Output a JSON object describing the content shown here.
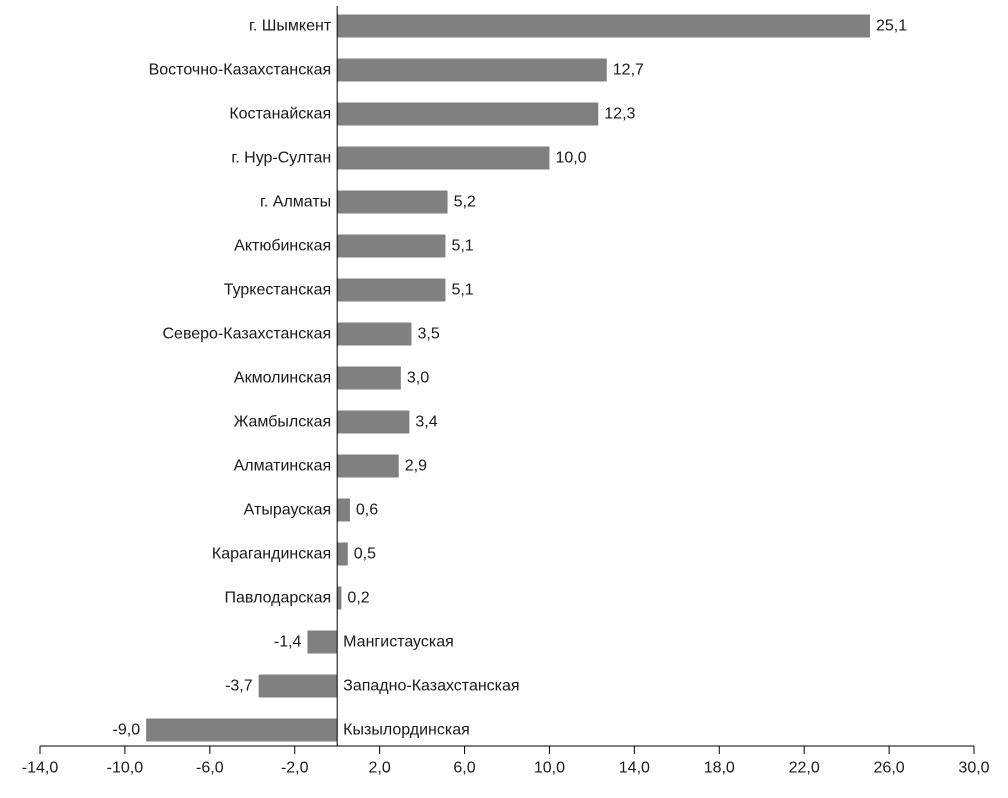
{
  "chart_data": {
    "type": "bar",
    "orientation": "horizontal",
    "categories": [
      "г. Шымкент",
      "Восточно-Казахстанская",
      "Костанайская",
      "г. Нур-Султан",
      "г. Алматы",
      "Актюбинская",
      "Туркестанская",
      "Северо-Казахстанская",
      "Акмолинская",
      "Жамбылская",
      "Алматинская",
      "Атырауская",
      "Карагандинская",
      "Павлодарская",
      "Мангистауская",
      "Западно-Казахстанская",
      "Кызылординская"
    ],
    "values": [
      25.1,
      12.7,
      12.3,
      10.0,
      5.2,
      5.1,
      5.1,
      3.5,
      3.0,
      3.4,
      2.9,
      0.6,
      0.5,
      0.2,
      -1.4,
      -3.7,
      -9.0
    ],
    "value_labels": [
      "25,1",
      "12,7",
      "12,3",
      "10,0",
      "5,2",
      "5,1",
      "5,1",
      "3,5",
      "3,0",
      "3,4",
      "2,9",
      "0,6",
      "0,5",
      "0,2",
      "-1,4",
      "-3,7",
      "-9,0"
    ],
    "xlim": [
      -14,
      30
    ],
    "x_ticks": [
      -14,
      -10,
      -6,
      -2,
      2,
      6,
      10,
      14,
      18,
      22,
      26,
      30
    ],
    "x_tick_labels": [
      "-14,0",
      "-10,0",
      "-6,0",
      "-2,0",
      "2,0",
      "6,0",
      "10,0",
      "14,0",
      "18,0",
      "22,0",
      "26,0",
      "30,0"
    ],
    "title": "",
    "xlabel": "",
    "ylabel": "",
    "grid": false,
    "bar_color": "#808080"
  }
}
